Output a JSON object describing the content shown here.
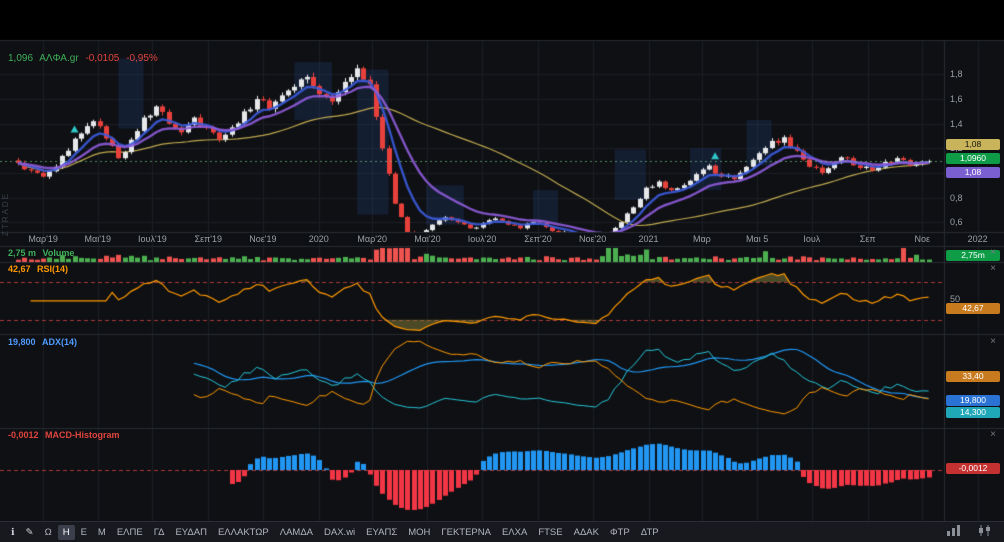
{
  "header": {
    "last": "1,096",
    "symbol": "ΑΛΦΑ.gr",
    "change": "-0,0105",
    "change_pct": "-0,95%"
  },
  "watermark": "ZTRADE",
  "ui": {
    "close_glyph": "×"
  },
  "colors": {
    "up": "#e6e8ea",
    "down": "#e8413c",
    "ma_blue": "#3b5bdb",
    "ma_purple": "#8e5bd9",
    "ma_yellow": "#bfa84f",
    "vol_up": "#4caf50",
    "vol_down": "#ef5350",
    "rsi": "#ff9800",
    "adx": "#2196f3",
    "di_plus": "#26c6da",
    "di_minus": "#ff9800",
    "macd_up": "#2196f3",
    "macd_down": "#f23645",
    "level_dash": "#a83a3a",
    "last_price_line": "rgba(110,190,130,0.7)",
    "zone": "rgba(40,72,138,0.25)",
    "rsi_fill": "rgba(138,132,58,0.5)"
  },
  "price_scale": {
    "labels": [
      "1,8",
      "1,6",
      "1,4",
      "1,2",
      "1,0",
      "0,8",
      "0,6"
    ],
    "values": [
      1.8,
      1.6,
      1.4,
      1.2,
      1.0,
      0.8,
      0.6
    ],
    "last_badge": "1,0960"
  },
  "time_axis": [
    {
      "label": "Μαρ'19",
      "week": 4
    },
    {
      "label": "Μαι'19",
      "week": 12.7
    },
    {
      "label": "Ιουλ'19",
      "week": 21.4
    },
    {
      "label": "Σεπ'19",
      "week": 30.3
    },
    {
      "label": "Νοε'19",
      "week": 39
    },
    {
      "label": "2020",
      "week": 47.9
    },
    {
      "label": "Μαρ'20",
      "week": 56.4
    },
    {
      "label": "Μαι'20",
      "week": 65.2
    },
    {
      "label": "Ιουλ'20",
      "week": 73.9
    },
    {
      "label": "Σεπ'20",
      "week": 82.8
    },
    {
      "label": "Νοε'20",
      "week": 91.5
    },
    {
      "label": "2021",
      "week": 100.4
    },
    {
      "label": "Μαρ",
      "week": 108.9
    },
    {
      "label": "Μαι 5",
      "week": 117.7
    },
    {
      "label": "Ιουλ",
      "week": 126.4
    },
    {
      "label": "Σεπ",
      "week": 135.3
    },
    {
      "label": "Νοε",
      "week": 144
    },
    {
      "label": "2022",
      "week": 152.8
    }
  ],
  "panes": {
    "volume": {
      "value": "2,75 m",
      "name": "Volume",
      "badge": "2,75m"
    },
    "rsi": {
      "value": "42,67",
      "name": "RSI(14)",
      "mid": "50",
      "badge": "42,67"
    },
    "adx": {
      "value": "19,800",
      "name": "ADX(14)",
      "badges": [
        {
          "text": "33,40",
          "color": "#c87a1e"
        },
        {
          "text": "19,800",
          "color": "#2a72d4"
        },
        {
          "text": "14,300",
          "color": "#1fa8b8"
        }
      ]
    },
    "macd": {
      "value": "-0,0012",
      "name": "MACD-Histogram",
      "badge": "-0,0012"
    }
  },
  "toolbar": {
    "left_icons": [
      {
        "name": "info-icon",
        "glyph": "ℹ"
      },
      {
        "name": "draw-icon",
        "glyph": "✎"
      }
    ],
    "intervals": [
      {
        "label": "Ω"
      },
      {
        "label": "Η",
        "selected": true
      },
      {
        "label": "Ε"
      },
      {
        "label": "Μ"
      }
    ],
    "tickers": [
      "ΕΛΠΕ",
      "ΓΔ",
      "ΕΥΔΑΠ",
      "ΕΛΛΑΚΤΩΡ",
      "ΛΑΜΔΑ",
      "DAX.wi",
      "ΕΥΑΠΣ",
      "ΜΟΗ",
      "ΓΕΚΤΕΡΝΑ",
      "ΕΛΧΑ",
      "FTSE",
      "ΑΔΑΚ",
      "ΦΤΡ",
      "ΔΤΡ"
    ]
  },
  "chart_data": {
    "type": "candlestick",
    "symbol": "ΑΛΦΑ.gr",
    "interval": "weekly",
    "weeks_total": 146,
    "x_range": [
      "Φεβ 2019",
      "Νοε 2021"
    ],
    "price_range": [
      0.52,
      2.08
    ],
    "last_close": 1.096,
    "change": -0.0105,
    "change_pct": -0.95,
    "anchors_week_close": [
      [
        0,
        1.08
      ],
      [
        2,
        1.02
      ],
      [
        4,
        0.97
      ],
      [
        6,
        1.05
      ],
      [
        8,
        1.18
      ],
      [
        10,
        1.32
      ],
      [
        12,
        1.42
      ],
      [
        14,
        1.28
      ],
      [
        16,
        1.12
      ],
      [
        18,
        1.27
      ],
      [
        20,
        1.45
      ],
      [
        22,
        1.54
      ],
      [
        24,
        1.4
      ],
      [
        26,
        1.33
      ],
      [
        28,
        1.45
      ],
      [
        30,
        1.37
      ],
      [
        32,
        1.27
      ],
      [
        34,
        1.37
      ],
      [
        36,
        1.5
      ],
      [
        38,
        1.6
      ],
      [
        40,
        1.52
      ],
      [
        42,
        1.63
      ],
      [
        44,
        1.7
      ],
      [
        46,
        1.78
      ],
      [
        48,
        1.64
      ],
      [
        50,
        1.58
      ],
      [
        52,
        1.74
      ],
      [
        54,
        1.85
      ],
      [
        56,
        1.72
      ],
      [
        58,
        1.2
      ],
      [
        60,
        0.75
      ],
      [
        62,
        0.52
      ],
      [
        64,
        0.48
      ],
      [
        66,
        0.58
      ],
      [
        68,
        0.64
      ],
      [
        70,
        0.6
      ],
      [
        72,
        0.55
      ],
      [
        74,
        0.59
      ],
      [
        76,
        0.63
      ],
      [
        78,
        0.58
      ],
      [
        80,
        0.55
      ],
      [
        82,
        0.6
      ],
      [
        84,
        0.56
      ],
      [
        86,
        0.52
      ],
      [
        88,
        0.5
      ],
      [
        90,
        0.47
      ],
      [
        92,
        0.45
      ],
      [
        94,
        0.5
      ],
      [
        96,
        0.6
      ],
      [
        98,
        0.72
      ],
      [
        100,
        0.88
      ],
      [
        102,
        0.93
      ],
      [
        104,
        0.86
      ],
      [
        106,
        0.9
      ],
      [
        108,
        0.99
      ],
      [
        110,
        1.06
      ],
      [
        112,
        0.97
      ],
      [
        114,
        0.95
      ],
      [
        116,
        1.05
      ],
      [
        118,
        1.16
      ],
      [
        120,
        1.26
      ],
      [
        122,
        1.29
      ],
      [
        124,
        1.18
      ],
      [
        126,
        1.05
      ],
      [
        128,
        1.0
      ],
      [
        130,
        1.08
      ],
      [
        132,
        1.12
      ],
      [
        134,
        1.04
      ],
      [
        136,
        1.02
      ],
      [
        138,
        1.09
      ],
      [
        140,
        1.12
      ],
      [
        142,
        1.06
      ],
      [
        144,
        1.09
      ],
      [
        145,
        1.096
      ]
    ],
    "volume_spikes": {
      "61": 0.55,
      "62": 0.45,
      "94": 0.8,
      "95": 0.5,
      "100": 0.35,
      "119": 0.5,
      "141": 0.9,
      "143": 0.35
    },
    "markers": [
      {
        "week": 9,
        "color": "#2ec7c9"
      },
      {
        "week": 111,
        "color": "#2ec7c9"
      }
    ],
    "zones": [
      [
        16,
        20,
        1.36,
        1.93
      ],
      [
        44,
        50,
        1.43,
        1.9
      ],
      [
        54,
        59,
        0.66,
        1.84
      ],
      [
        65,
        71,
        0.58,
        0.9
      ],
      [
        82,
        86,
        0.6,
        0.86
      ],
      [
        95,
        100,
        0.78,
        1.19
      ],
      [
        107,
        112,
        0.86,
        1.2
      ],
      [
        116,
        120,
        1.06,
        1.43
      ]
    ],
    "indicators": {
      "rsi": {
        "period": 14,
        "levels": [
          70,
          30
        ],
        "last": 42.67
      },
      "adx": {
        "period": 14,
        "adx_last": 19.8,
        "di_minus_last": 33.4,
        "di_plus_last": 14.3
      },
      "macd": {
        "fast": 12,
        "slow": 26,
        "signal": 9,
        "hist_last": -0.0012
      },
      "ma": {
        "fast": 6,
        "mid": 13,
        "long": 40
      },
      "volume_last_label": "2,75 m"
    }
  }
}
